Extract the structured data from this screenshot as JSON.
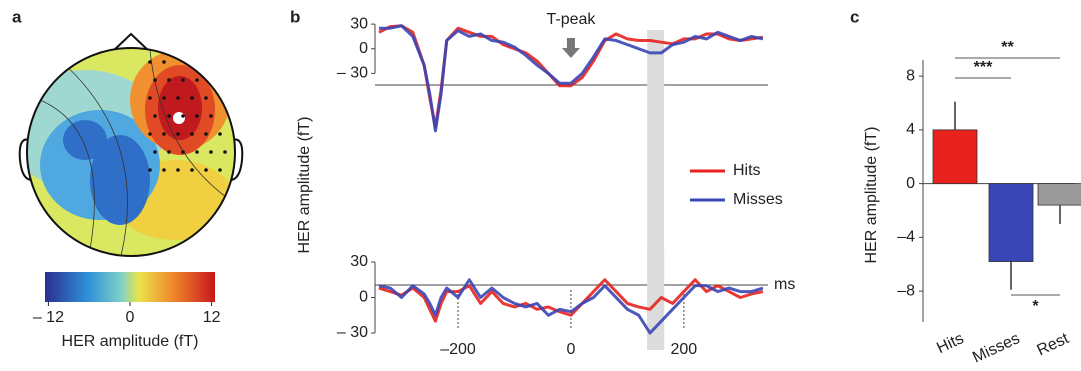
{
  "chart_data": [
    {
      "type": "topomap",
      "panel": "a",
      "colorbar_label": "HER amplitude (fT)",
      "clim": [
        -12.5,
        12.5
      ],
      "cticks": [
        {
          "value": -12,
          "label": "– 12"
        },
        0,
        12
      ]
    },
    {
      "type": "line",
      "panel": "b",
      "ylabel": "HER amplitude (fT)",
      "annotation": "T-peak",
      "annotation_x": 0,
      "x": [
        -340,
        -320,
        -300,
        -280,
        -260,
        -250,
        -240,
        -230,
        -220,
        -200,
        -180,
        -160,
        -140,
        -120,
        -100,
        -80,
        -60,
        -40,
        -20,
        0,
        20,
        40,
        60,
        80,
        100,
        120,
        140,
        160,
        180,
        200,
        220,
        240,
        260,
        280,
        300,
        320,
        340
      ],
      "xlim": [
        -347,
        349
      ],
      "ylim": [
        -105,
        35
      ],
      "yticks": [
        {
          "value": -30,
          "label": "– 30"
        },
        0,
        30
      ],
      "shaded_range": [
        135,
        165
      ],
      "legend": "right",
      "series": [
        {
          "name": "Hits",
          "color": "#e8231f",
          "values": [
            20,
            27,
            28,
            20,
            -20,
            -60,
            -95,
            -50,
            10,
            25,
            20,
            15,
            15,
            5,
            0,
            -5,
            -15,
            -30,
            -45,
            -45,
            -35,
            -15,
            10,
            18,
            12,
            10,
            10,
            8,
            6,
            12,
            12,
            18,
            18,
            12,
            10,
            12,
            14
          ]
        },
        {
          "name": "Misses",
          "color": "#3a46b5",
          "values": [
            25,
            25,
            28,
            15,
            -20,
            -55,
            -100,
            -55,
            10,
            22,
            15,
            18,
            10,
            8,
            2,
            -8,
            -20,
            -30,
            -42,
            -42,
            -30,
            -10,
            12,
            10,
            5,
            0,
            -5,
            -5,
            5,
            8,
            15,
            12,
            20,
            15,
            10,
            15,
            12
          ]
        }
      ]
    },
    {
      "type": "line",
      "xlabel": "ms",
      "x": [
        -340,
        -320,
        -300,
        -280,
        -260,
        -250,
        -240,
        -230,
        -220,
        -200,
        -180,
        -160,
        -140,
        -120,
        -100,
        -80,
        -60,
        -40,
        -20,
        0,
        20,
        40,
        60,
        80,
        100,
        120,
        140,
        160,
        180,
        200,
        220,
        240,
        260,
        280,
        300,
        320,
        340
      ],
      "xlim": [
        -347,
        349
      ],
      "ylim": [
        -30,
        30
      ],
      "yticks": [
        {
          "value": -30,
          "label": "– 30"
        },
        0,
        30
      ],
      "xticks": [
        {
          "value": -200,
          "label": "–200"
        },
        0,
        200
      ],
      "shaded_range": [
        135,
        165
      ],
      "series": [
        {
          "color": "#e8231f",
          "values": [
            8,
            5,
            2,
            8,
            0,
            -10,
            -20,
            -5,
            5,
            5,
            10,
            -5,
            5,
            -5,
            -8,
            -5,
            -10,
            -8,
            -12,
            -15,
            -5,
            5,
            15,
            5,
            -5,
            -8,
            -10,
            0,
            -5,
            5,
            15,
            5,
            10,
            5,
            0,
            3,
            5
          ]
        },
        {
          "color": "#3a46b5",
          "values": [
            10,
            8,
            0,
            10,
            3,
            -5,
            -15,
            0,
            8,
            0,
            15,
            0,
            8,
            0,
            -5,
            -8,
            -5,
            -15,
            -10,
            -12,
            -5,
            0,
            10,
            0,
            -10,
            -15,
            -30,
            -20,
            -10,
            0,
            10,
            10,
            5,
            8,
            5,
            5,
            8
          ]
        }
      ]
    },
    {
      "type": "bar",
      "panel": "c",
      "ylabel": "HER amplitude (fT)",
      "categories": [
        "Hits",
        "Misses",
        "Rest"
      ],
      "values": [
        4,
        -5.8,
        -1.6
      ],
      "errors": [
        2.1,
        2.1,
        1.4
      ],
      "colors": [
        "#e8231f",
        "#3a46b5",
        "#9a9a9a"
      ],
      "ylim": [
        -10.3,
        9.2
      ],
      "yticks": [
        8,
        4,
        0,
        {
          "value": -4,
          "label": "–4"
        },
        {
          "value": -8,
          "label": "–8"
        }
      ],
      "significance": [
        {
          "between": [
            0,
            1
          ],
          "label": "***"
        },
        {
          "between": [
            0,
            2
          ],
          "label": "**"
        },
        {
          "between": [
            1,
            2
          ],
          "label": "*"
        }
      ]
    }
  ]
}
